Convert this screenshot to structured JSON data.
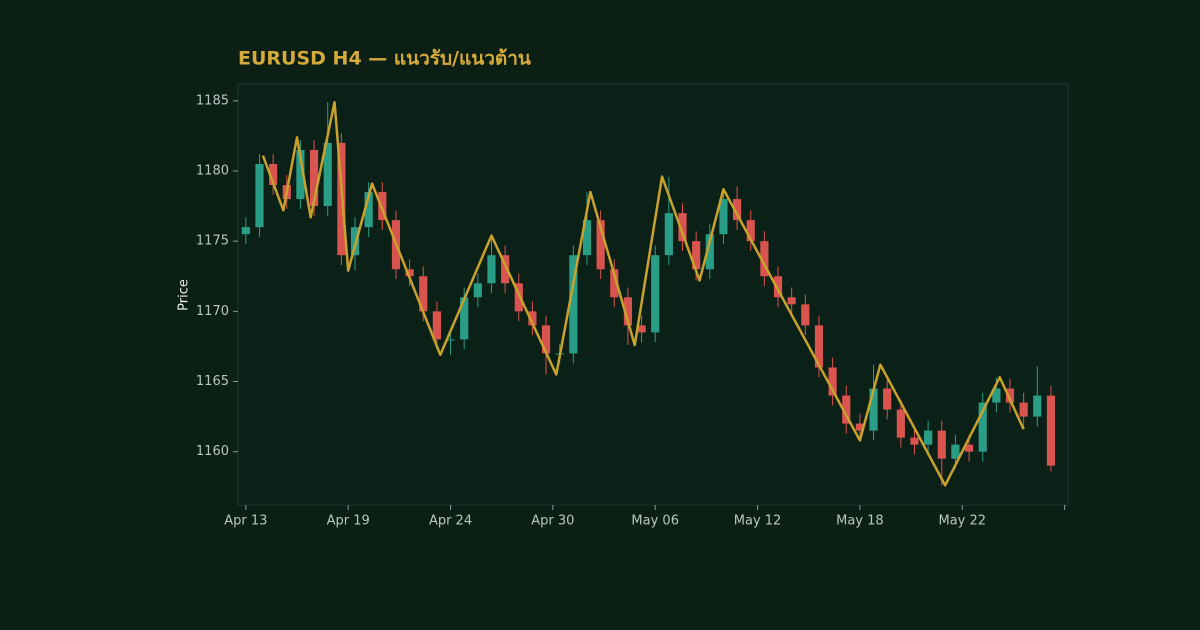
{
  "chart_data": {
    "type": "candlestick",
    "title": "EURUSD H4 — แนวรับ/แนวต้าน",
    "y_label": "Price",
    "up_color": "#2a9d87",
    "down_color": "#d9534f",
    "x": [
      0,
      4,
      8,
      12,
      16,
      20,
      24,
      28,
      32,
      36,
      40,
      44,
      48,
      52,
      56,
      60,
      64,
      68,
      72,
      76,
      80,
      84,
      88,
      92,
      96,
      100,
      104,
      108,
      112,
      116,
      120,
      124,
      128,
      132,
      136,
      140,
      144,
      148,
      152,
      156,
      160,
      164,
      168,
      172,
      176,
      180,
      184,
      188,
      192,
      196,
      200,
      204,
      208,
      212,
      216,
      220,
      224,
      228,
      232,
      236
    ],
    "open": [
      1175.5,
      1176,
      1180.5,
      1179,
      1178,
      1181.5,
      1177.5,
      1182,
      1174,
      1176,
      1178.5,
      1176.5,
      1173,
      1172.5,
      1170,
      1168,
      1168,
      1171,
      1172,
      1174,
      1172,
      1170,
      1169,
      1167,
      1167,
      1174,
      1176.5,
      1173,
      1171,
      1169,
      1168.5,
      1174,
      1177,
      1175,
      1173,
      1175.5,
      1178,
      1176.5,
      1175,
      1172.5,
      1171,
      1170.5,
      1169,
      1166,
      1164,
      1162,
      1161.5,
      1164.5,
      1163,
      1161,
      1160.5,
      1161.5,
      1159.5,
      1160.5,
      1160,
      1163.5,
      1164.5,
      1163.5,
      1162.5,
      1164
    ],
    "high": [
      1176.7,
      1181.2,
      1181.2,
      1179.7,
      1182.2,
      1182.2,
      1184.9,
      1182.7,
      1176.7,
      1179.2,
      1179.2,
      1177.2,
      1173.7,
      1173.2,
      1170.7,
      1168.7,
      1171.7,
      1172.7,
      1175.4,
      1174.7,
      1172.7,
      1170.7,
      1169.7,
      1167.7,
      1174.7,
      1178.5,
      1177.2,
      1173.7,
      1171.7,
      1169.7,
      1174.7,
      1179.6,
      1177.7,
      1175.7,
      1176.2,
      1178.7,
      1178.9,
      1177.2,
      1175.7,
      1173.2,
      1171.7,
      1171.2,
      1169.7,
      1166.7,
      1164.7,
      1162.7,
      1166.2,
      1165.2,
      1163.7,
      1161.7,
      1162.2,
      1162.2,
      1161.2,
      1161.2,
      1164.2,
      1165.3,
      1165.2,
      1164.2,
      1166.1,
      1164.7
    ],
    "low": [
      1174.8,
      1175.3,
      1178.3,
      1177.3,
      1177.3,
      1176.8,
      1176.8,
      1173.3,
      1172.9,
      1175.3,
      1175.8,
      1172.3,
      1171.8,
      1169.3,
      1167.3,
      1166.9,
      1167.3,
      1170.3,
      1171.3,
      1171.3,
      1169.3,
      1168.3,
      1165.5,
      1166.3,
      1166.3,
      1173.3,
      1172.3,
      1170.3,
      1167.6,
      1167.8,
      1167.8,
      1173.3,
      1174.3,
      1172.2,
      1172.3,
      1174.8,
      1175.8,
      1174.3,
      1171.8,
      1170.3,
      1169.8,
      1168.3,
      1165.3,
      1163.3,
      1161.3,
      1160.8,
      1160.8,
      1162.3,
      1160.3,
      1159.8,
      1159.8,
      1157.6,
      1158.8,
      1159.3,
      1159.3,
      1162.8,
      1162.8,
      1161.6,
      1161.8,
      1158.6
    ],
    "close": [
      1176,
      1180.5,
      1179,
      1178,
      1181.5,
      1177.5,
      1182,
      1174,
      1176,
      1178.5,
      1176.5,
      1173,
      1172.5,
      1170,
      1168,
      1168,
      1171,
      1172,
      1174,
      1172,
      1170,
      1169,
      1167,
      1167,
      1174,
      1176.5,
      1173,
      1171,
      1169,
      1168.5,
      1174,
      1177,
      1175,
      1173,
      1175.5,
      1178,
      1176.5,
      1175,
      1172.5,
      1171,
      1170.5,
      1169,
      1166,
      1164,
      1162,
      1161.5,
      1164.5,
      1163,
      1161,
      1160.5,
      1161.5,
      1159.5,
      1160.5,
      1160,
      1163.5,
      1164.5,
      1163.5,
      1162.5,
      1164,
      1159
    ],
    "zigzag": {
      "color": "#c9a22e",
      "x": [
        5,
        11,
        15,
        19,
        26,
        30,
        37,
        57,
        72,
        91,
        101,
        114,
        122,
        133,
        140,
        180,
        186,
        205,
        221,
        228
      ],
      "values": [
        1181.1,
        1177.2,
        1182.4,
        1176.7,
        1184.9,
        1172.9,
        1179.1,
        1166.9,
        1175.4,
        1165.5,
        1178.5,
        1167.6,
        1179.6,
        1172.2,
        1178.7,
        1160.8,
        1166.2,
        1157.6,
        1165.3,
        1161.6
      ]
    },
    "xlim": [
      -2.3,
      241
    ],
    "ylim": [
      1156.2,
      1186.2
    ],
    "yticks": [
      1160,
      1165,
      1170,
      1175,
      1180,
      1185
    ],
    "xticks": [
      {
        "value": 0,
        "label": "Apr 13"
      },
      {
        "value": 30,
        "label": "Apr 19"
      },
      {
        "value": 60,
        "label": "Apr 24"
      },
      {
        "value": 90,
        "label": "Apr 30"
      },
      {
        "value": 120,
        "label": "May 06"
      },
      {
        "value": 150,
        "label": "May 12"
      },
      {
        "value": 180,
        "label": "May 18"
      },
      {
        "value": 210,
        "label": "May 22"
      },
      {
        "value": 240,
        "label": null
      }
    ]
  }
}
